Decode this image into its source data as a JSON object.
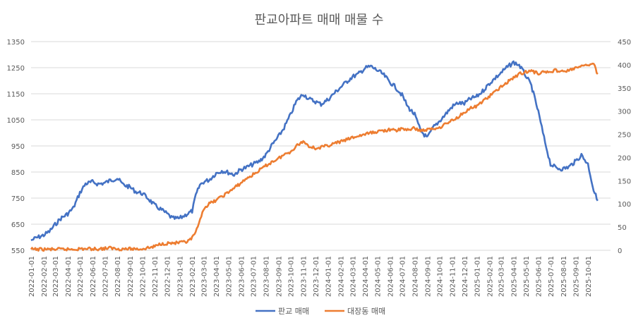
{
  "chart_data": {
    "type": "line",
    "title": "판교아파트 매매 매물 수",
    "x_start": "2022-01-01",
    "x_ticks": [
      "2022-01-01",
      "2022-02-01",
      "2022-03-01",
      "2022-04-01",
      "2022-05-01",
      "2022-06-01",
      "2022-07-01",
      "2022-08-01",
      "2022-09-01",
      "2022-10-01",
      "2022-11-01",
      "2022-12-01",
      "2023-01-01",
      "2023-02-01",
      "2023-03-01",
      "2023-04-01",
      "2023-05-01",
      "2023-06-01",
      "2023-07-01",
      "2023-08-01",
      "2023-09-01",
      "2023-10-01",
      "2023-11-01",
      "2023-12-01",
      "2024-01-01",
      "2024-02-01",
      "2024-03-01",
      "2024-04-01",
      "2024-05-01",
      "2024-06-01",
      "2024-07-01",
      "2024-08-01",
      "2024-09-01",
      "2024-10-01",
      "2024-11-01",
      "2024-12-01",
      "2025-01-01",
      "2025-02-01",
      "2025-03-01",
      "2025-04-01",
      "2025-05-01",
      "2025-06-01",
      "2025-07-01",
      "2025-08-01",
      "2025-09-01",
      "2025-10-01"
    ],
    "y_left": {
      "min": 550,
      "max": 1350,
      "ticks": [
        550,
        650,
        750,
        850,
        950,
        1050,
        1150,
        1250,
        1350
      ]
    },
    "y_right": {
      "min": 0,
      "max": 450,
      "ticks": [
        0,
        50,
        100,
        150,
        200,
        250,
        300,
        350,
        400,
        450
      ]
    },
    "grid": true,
    "legend_position": "bottom",
    "series": [
      {
        "name": "판교 매매",
        "axis": "left",
        "color": "#4472c4",
        "x": [
          "2022-01-01",
          "2022-01-15",
          "2022-02-01",
          "2022-02-15",
          "2022-03-01",
          "2022-03-15",
          "2022-04-01",
          "2022-04-15",
          "2022-05-01",
          "2022-05-15",
          "2022-06-01",
          "2022-06-15",
          "2022-07-01",
          "2022-07-15",
          "2022-08-01",
          "2022-08-15",
          "2022-09-01",
          "2022-09-15",
          "2022-10-01",
          "2022-10-15",
          "2022-11-01",
          "2022-11-15",
          "2022-12-01",
          "2022-12-15",
          "2023-01-01",
          "2023-01-15",
          "2023-02-01",
          "2023-02-10",
          "2023-02-20",
          "2023-03-01",
          "2023-03-15",
          "2023-04-01",
          "2023-04-15",
          "2023-05-01",
          "2023-05-15",
          "2023-06-01",
          "2023-06-15",
          "2023-07-01",
          "2023-07-15",
          "2023-08-01",
          "2023-08-15",
          "2023-09-01",
          "2023-09-15",
          "2023-10-01",
          "2023-10-15",
          "2023-11-01",
          "2023-11-15",
          "2023-12-01",
          "2023-12-15",
          "2024-01-01",
          "2024-01-15",
          "2024-02-01",
          "2024-02-15",
          "2024-03-01",
          "2024-03-15",
          "2024-04-01",
          "2024-04-15",
          "2024-05-01",
          "2024-05-15",
          "2024-06-01",
          "2024-06-15",
          "2024-07-01",
          "2024-07-15",
          "2024-08-01",
          "2024-08-15",
          "2024-09-01",
          "2024-09-15",
          "2024-10-01",
          "2024-10-15",
          "2024-11-01",
          "2024-11-15",
          "2024-12-01",
          "2024-12-15",
          "2025-01-01",
          "2025-01-15",
          "2025-02-01",
          "2025-02-15",
          "2025-03-01",
          "2025-03-15",
          "2025-04-01",
          "2025-04-15",
          "2025-05-01",
          "2025-05-15",
          "2025-06-01",
          "2025-06-15",
          "2025-07-01",
          "2025-07-15",
          "2025-08-01",
          "2025-08-15",
          "2025-09-01",
          "2025-09-15",
          "2025-10-01",
          "2025-10-15",
          "2025-10-25"
        ],
        "values": [
          588,
          598,
          608,
          622,
          648,
          672,
          690,
          712,
          770,
          805,
          812,
          804,
          808,
          818,
          826,
          802,
          792,
          775,
          768,
          750,
          722,
          708,
          690,
          672,
          672,
          685,
          700,
          760,
          800,
          812,
          820,
          845,
          855,
          848,
          840,
          860,
          868,
          880,
          890,
          915,
          950,
          985,
          1020,
          1070,
          1120,
          1150,
          1130,
          1120,
          1110,
          1128,
          1150,
          1175,
          1195,
          1215,
          1225,
          1248,
          1255,
          1240,
          1225,
          1195,
          1175,
          1145,
          1100,
          1070,
          1010,
          980,
          1020,
          1045,
          1070,
          1100,
          1115,
          1112,
          1130,
          1140,
          1160,
          1190,
          1210,
          1230,
          1250,
          1270,
          1260,
          1220,
          1180,
          1080,
          980,
          880,
          865,
          862,
          870,
          892,
          915,
          880,
          780,
          740
        ]
      },
      {
        "name": "대장동 매매",
        "axis": "right",
        "color": "#ed7d31",
        "x": [
          "2022-01-01",
          "2022-02-01",
          "2022-03-01",
          "2022-04-01",
          "2022-05-01",
          "2022-06-01",
          "2022-06-20",
          "2022-07-15",
          "2022-08-01",
          "2022-09-01",
          "2022-10-01",
          "2022-10-15",
          "2022-11-01",
          "2022-11-15",
          "2022-12-01",
          "2023-01-01",
          "2023-01-20",
          "2023-02-01",
          "2023-02-15",
          "2023-03-01",
          "2023-03-15",
          "2023-04-01",
          "2023-04-15",
          "2023-05-01",
          "2023-05-15",
          "2023-06-01",
          "2023-06-15",
          "2023-07-01",
          "2023-07-15",
          "2023-08-01",
          "2023-08-15",
          "2023-09-01",
          "2023-09-15",
          "2023-10-01",
          "2023-10-15",
          "2023-11-01",
          "2023-11-15",
          "2023-12-01",
          "2023-12-15",
          "2024-01-01",
          "2024-01-15",
          "2024-02-01",
          "2024-02-15",
          "2024-03-01",
          "2024-03-15",
          "2024-04-01",
          "2024-04-15",
          "2024-05-01",
          "2024-05-15",
          "2024-06-01",
          "2024-06-15",
          "2024-07-01",
          "2024-07-15",
          "2024-08-01",
          "2024-08-15",
          "2024-09-01",
          "2024-09-15",
          "2024-10-01",
          "2024-10-15",
          "2024-11-01",
          "2024-11-15",
          "2024-12-01",
          "2024-12-15",
          "2025-01-01",
          "2025-01-15",
          "2025-02-01",
          "2025-02-15",
          "2025-03-01",
          "2025-03-15",
          "2025-04-01",
          "2025-04-15",
          "2025-05-01",
          "2025-05-15",
          "2025-06-01",
          "2025-06-15",
          "2025-07-01",
          "2025-07-15",
          "2025-08-01",
          "2025-08-15",
          "2025-09-01",
          "2025-09-15",
          "2025-10-01",
          "2025-10-15",
          "2025-10-25"
        ],
        "values": [
          2,
          2,
          2,
          2,
          3,
          3,
          3,
          5,
          3,
          3,
          3,
          5,
          8,
          14,
          15,
          16,
          18,
          26,
          48,
          90,
          100,
          108,
          116,
          125,
          134,
          145,
          155,
          163,
          172,
          182,
          190,
          198,
          206,
          213,
          225,
          235,
          225,
          220,
          222,
          226,
          230,
          234,
          238,
          243,
          246,
          250,
          253,
          256,
          258,
          260,
          258,
          262,
          260,
          263,
          258,
          260,
          262,
          265,
          272,
          280,
          287,
          298,
          306,
          310,
          322,
          332,
          342,
          352,
          362,
          372,
          380,
          385,
          386,
          382,
          384,
          386,
          388,
          385,
          388,
          393,
          396,
          400,
          402,
          380
        ]
      }
    ]
  }
}
